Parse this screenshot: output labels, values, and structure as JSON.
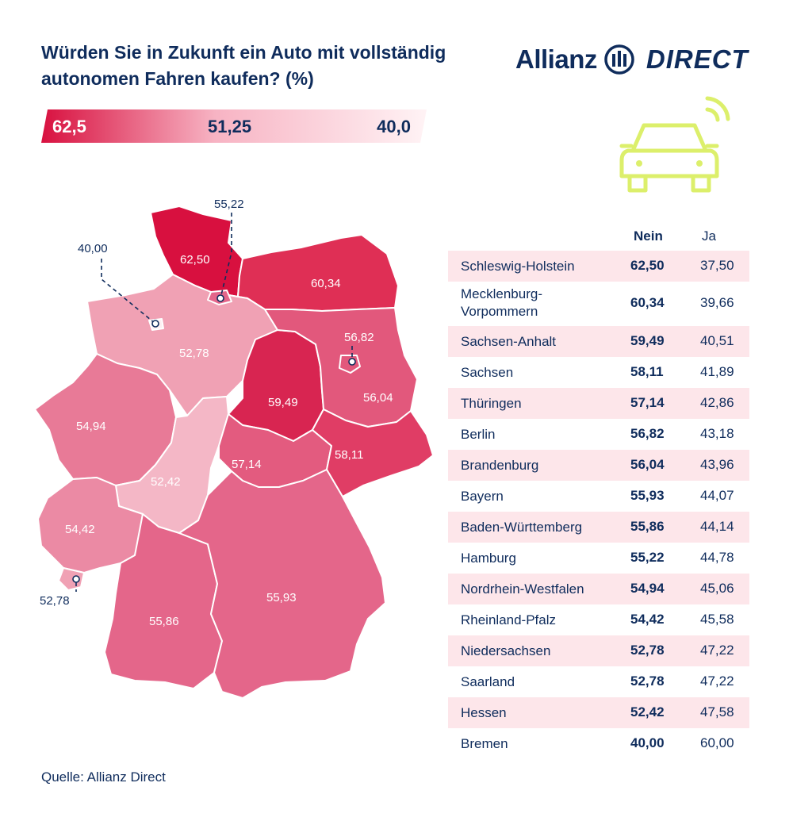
{
  "title": "Würden Sie in Zukunft ein Auto mit vollständig autonomen Fahren kaufen? (%)",
  "logo": {
    "left": "Allianz",
    "right": "DIRECT"
  },
  "legend": {
    "max": "62,5",
    "mid": "51,25",
    "min": "40,0",
    "colors": [
      "#d8103f",
      "#fff3f5"
    ]
  },
  "colors": {
    "text": "#0f2c5c",
    "accent": "#d8103f",
    "row_shade": "#fde6ea",
    "car_icon": "#dcef6b"
  },
  "map_values": {
    "Schleswig-Holstein": "62,50",
    "Mecklenburg-Vorpommern": "60,34",
    "Niedersachsen": "52,78",
    "Sachsen-Anhalt": "59,49",
    "Brandenburg": "56,04",
    "Nordrhein-Westfalen": "54,94",
    "Hessen": "52,42",
    "Thüringen": "57,14",
    "Sachsen": "58,11",
    "Rheinland-Pfalz": "54,42",
    "Bayern": "55,93",
    "Baden-Württemberg": "55,86",
    "Hamburg": "55,22",
    "Bremen": "40,00",
    "Berlin": "56,82",
    "Saarland": "52,78"
  },
  "table": {
    "headers": {
      "nein": "Nein",
      "ja": "Ja"
    },
    "rows": [
      {
        "state": "Schleswig-Holstein",
        "nein": "62,50",
        "ja": "37,50"
      },
      {
        "state": "Mecklenburg-Vorpommern",
        "state_line1": "Mecklenburg-",
        "state_line2": "Vorpommern",
        "nein": "60,34",
        "ja": "39,66"
      },
      {
        "state": "Sachsen-Anhalt",
        "nein": "59,49",
        "ja": "40,51"
      },
      {
        "state": "Sachsen",
        "nein": "58,11",
        "ja": "41,89"
      },
      {
        "state": "Thüringen",
        "nein": "57,14",
        "ja": "42,86"
      },
      {
        "state": "Berlin",
        "nein": "56,82",
        "ja": "43,18"
      },
      {
        "state": "Brandenburg",
        "nein": "56,04",
        "ja": "43,96"
      },
      {
        "state": "Bayern",
        "nein": "55,93",
        "ja": "44,07"
      },
      {
        "state": "Baden-Württemberg",
        "nein": "55,86",
        "ja": "44,14"
      },
      {
        "state": "Hamburg",
        "nein": "55,22",
        "ja": "44,78"
      },
      {
        "state": "Nordrhein-Westfalen",
        "nein": "54,94",
        "ja": "45,06"
      },
      {
        "state": "Rheinland-Pfalz",
        "nein": "54,42",
        "ja": "45,58"
      },
      {
        "state": "Niedersachsen",
        "nein": "52,78",
        "ja": "47,22"
      },
      {
        "state": "Saarland",
        "nein": "52,78",
        "ja": "47,22"
      },
      {
        "state": "Hessen",
        "nein": "52,42",
        "ja": "47,58"
      },
      {
        "state": "Bremen",
        "nein": "40,00",
        "ja": "60,00"
      }
    ]
  },
  "source": "Quelle: Allianz Direct"
}
